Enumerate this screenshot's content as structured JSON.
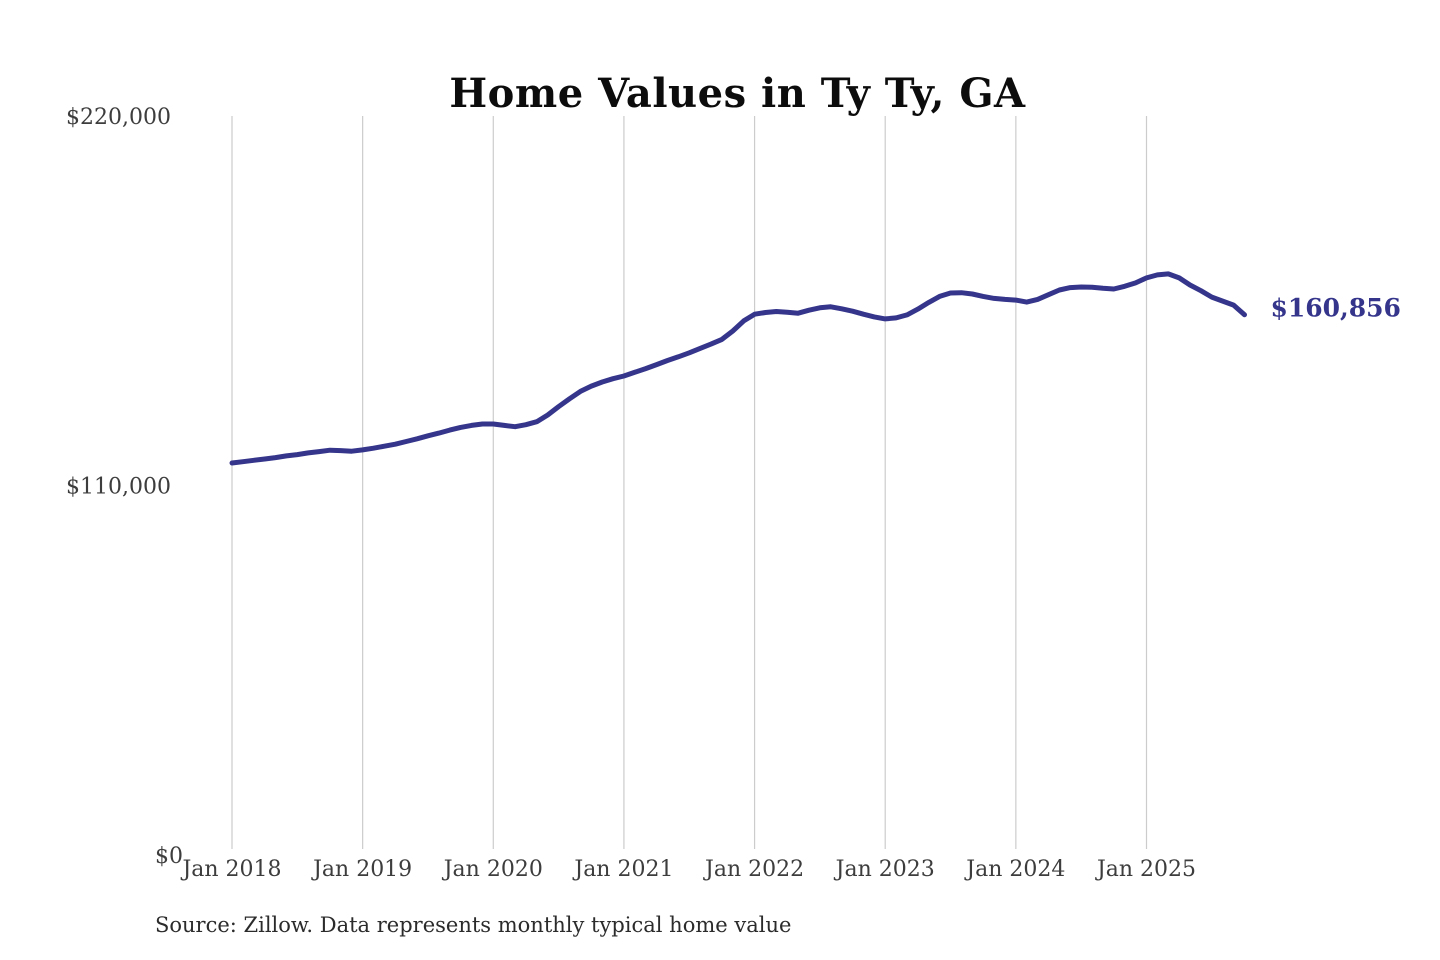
{
  "page": {
    "title": "Home Values in Ty Ty, GA",
    "source_note": "Source: Zillow. Data represents monthly typical home value"
  },
  "chart_data": {
    "type": "line",
    "title": "Home Values in Ty Ty, GA",
    "xlabel": "",
    "ylabel": "",
    "ylim": [
      0,
      220000
    ],
    "grid": "vertical-yearly",
    "legend": "none",
    "frequency": "monthly",
    "x_start": "Jan 2018",
    "x_end": "Oct 2025",
    "x_tick_labels": [
      "Jan 2018",
      "Jan 2019",
      "Jan 2020",
      "Jan 2021",
      "Jan 2022",
      "Jan 2023",
      "Jan 2024",
      "Jan 2025"
    ],
    "y_ticks": [
      {
        "label": "$0",
        "value": 0
      },
      {
        "label": "$110,000",
        "value": 110000
      },
      {
        "label": "$220,000",
        "value": 220000
      }
    ],
    "series": [
      {
        "name": "Typical home value",
        "color": "#35358c",
        "values": [
          116700,
          117100,
          117500,
          117900,
          118300,
          118800,
          119200,
          119700,
          120100,
          120500,
          120400,
          120200,
          120600,
          121100,
          121700,
          122300,
          123100,
          123900,
          124800,
          125600,
          126500,
          127300,
          127900,
          128300,
          128300,
          127900,
          127500,
          128100,
          129000,
          131000,
          133500,
          135800,
          138000,
          139600,
          140800,
          141800,
          142600,
          143700,
          144800,
          146000,
          147200,
          148300,
          149500,
          150800,
          152100,
          153500,
          156000,
          159000,
          161000,
          161500,
          161800,
          161600,
          161300,
          162200,
          162900,
          163200,
          162600,
          161900,
          161000,
          160200,
          159600,
          159900,
          160800,
          162500,
          164500,
          166300,
          167300,
          167400,
          167000,
          166300,
          165700,
          165400,
          165200,
          164600,
          165400,
          166800,
          168200,
          168900,
          169100,
          169000,
          168700,
          168500,
          169300,
          170300,
          171800,
          172700,
          173000,
          171800,
          169700,
          168000,
          166100,
          164900,
          163700,
          160856
        ]
      }
    ],
    "final_value": 160856,
    "end_label": "$160,856",
    "source": "Source: Zillow. Data represents monthly typical home value",
    "colors": {
      "line": "#35358c",
      "end_label": "#35358c",
      "grid": "#cccccc",
      "tick_text": "#3d3d3d",
      "title": "#0c0c0c"
    }
  }
}
